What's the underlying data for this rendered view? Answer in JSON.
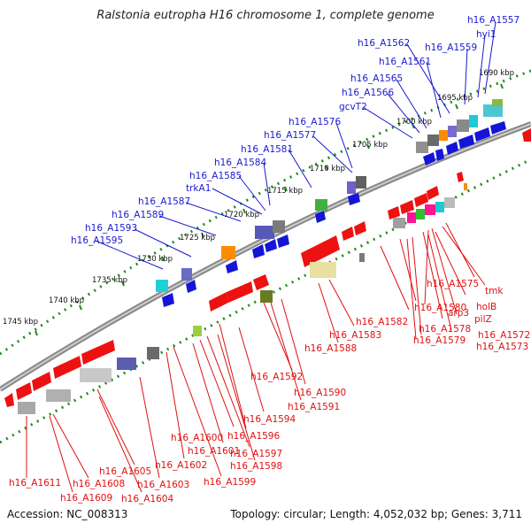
{
  "title": "Ralstonia eutropha H16 chromosome 1, complete genome",
  "footer": {
    "accession": "Accession: NC_008313",
    "summary": "Topology: circular; Length: 4,052,032 bp; Genes: 3,711"
  },
  "colors": {
    "forward_label": "#1a1ad0",
    "reverse_label": "#e01010",
    "forward_feature": "#1515d8",
    "reverse_feature": "#ee1111",
    "backbone": "#777777",
    "dotted_ring": "#1e8a1e"
  },
  "kbp_ticks": [
    "1690 kbp",
    "1695 kbp",
    "1700 kbp",
    "1705 kbp",
    "1710 kbp",
    "1715 kbp",
    "1720 kbp",
    "1725 kbp",
    "1730 kbp",
    "1735 kbp",
    "1740 kbp",
    "1745 kbp"
  ],
  "forward_labels": [
    "h16_A1557",
    "hyi1",
    "h16_A1559",
    "h16_A1562",
    "h16_A1561",
    "h16_A1565",
    "h16_A1566",
    "gcvT2",
    "h16_A1576",
    "h16_A1577",
    "h16_A1581",
    "h16_A1584",
    "h16_A1585",
    "trkA1",
    "h16_A1587",
    "h16_A1589",
    "h16_A1593",
    "h16_A1595"
  ],
  "reverse_labels": [
    "h16_A1575",
    "tmk",
    "h16_A1580",
    "holB",
    "arp3",
    "pilZ",
    "h16_A1578",
    "h16_A1572",
    "h16_A1582",
    "h16_A1579",
    "h16_A1573",
    "h16_A1583",
    "h16_A1588",
    "h16_A1592",
    "h16_A1590",
    "h16_A1591",
    "h16_A1594",
    "h16_A1596",
    "h16_A1600",
    "h16_A1601",
    "h16_A1597",
    "h16_A1598",
    "h16_A1602",
    "h16_A1599",
    "h16_A1605",
    "h16_A1603",
    "h16_A1611",
    "h16_A1608",
    "h16_A1609",
    "h16_A1604"
  ]
}
